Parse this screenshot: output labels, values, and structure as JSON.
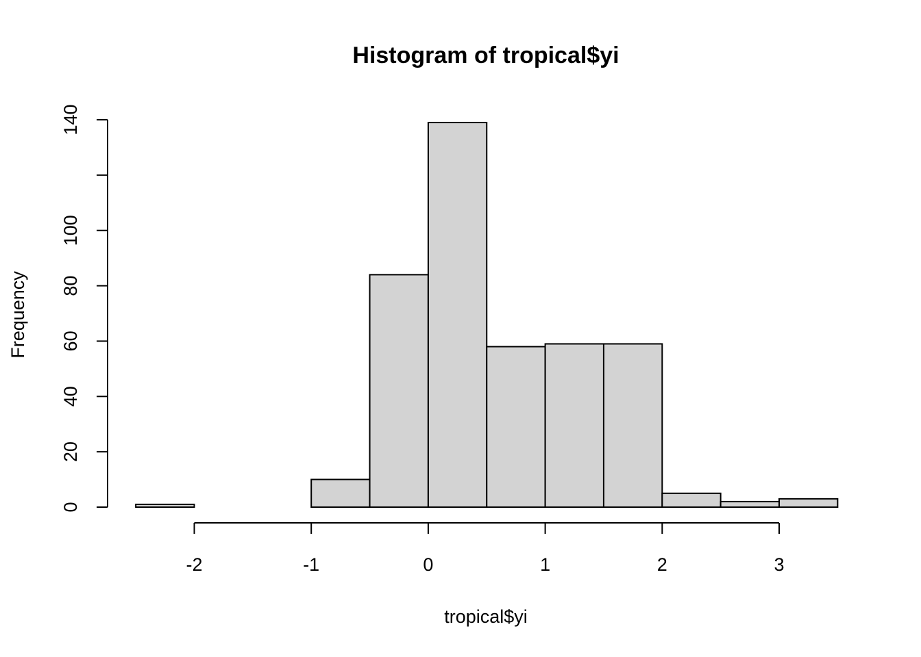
{
  "chart_data": {
    "type": "bar",
    "title": "Histogram of tropical$yi",
    "xlabel": "tropical$yi",
    "ylabel": "Frequency",
    "bin_edges": [
      -2.5,
      -2.0,
      -1.5,
      -1.0,
      -0.5,
      0.0,
      0.5,
      1.0,
      1.5,
      2.0,
      2.5,
      3.0,
      3.5
    ],
    "values": [
      1,
      0,
      0,
      10,
      84,
      139,
      58,
      59,
      59,
      5,
      2,
      3
    ],
    "bar_fill": "#d3d3d3",
    "xlim": [
      -2.5,
      3.5
    ],
    "ylim": [
      0,
      140
    ],
    "x_ticks": [
      -2,
      -1,
      0,
      1,
      2,
      3
    ],
    "y_ticks": [
      0,
      20,
      40,
      60,
      80,
      100,
      120,
      140
    ],
    "x_tick_labels": [
      "-2",
      "-1",
      "0",
      "1",
      "2",
      "3"
    ],
    "y_tick_labels": [
      "0",
      "20",
      "40",
      "60",
      "80",
      "100",
      "",
      "140"
    ],
    "grid": false,
    "legend": "none"
  }
}
